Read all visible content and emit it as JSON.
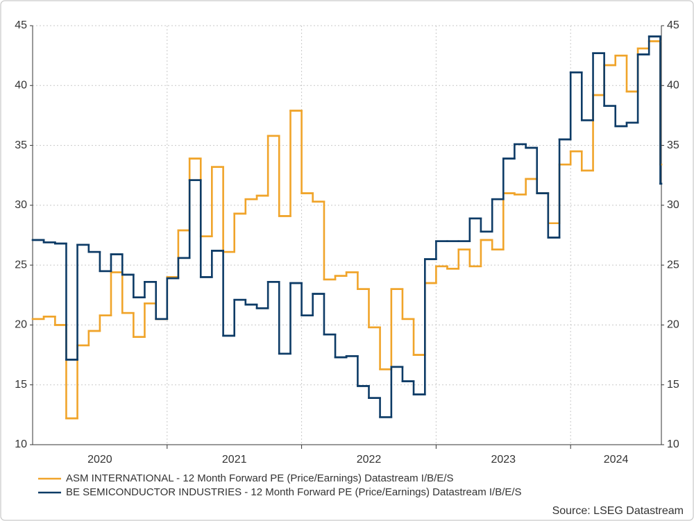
{
  "chart_data": {
    "type": "line",
    "x": [
      2020,
      2020.083,
      2020.167,
      2020.25,
      2020.333,
      2020.417,
      2020.5,
      2020.583,
      2020.667,
      2020.75,
      2020.833,
      2020.917,
      2021,
      2021.083,
      2021.167,
      2021.25,
      2021.333,
      2021.417,
      2021.5,
      2021.583,
      2021.667,
      2021.75,
      2021.833,
      2021.917,
      2022,
      2022.083,
      2022.167,
      2022.25,
      2022.333,
      2022.417,
      2022.5,
      2022.583,
      2022.667,
      2022.75,
      2022.833,
      2022.917,
      2023,
      2023.083,
      2023.167,
      2023.25,
      2023.333,
      2023.417,
      2023.5,
      2023.583,
      2023.667,
      2023.75,
      2023.833,
      2023.917,
      2024,
      2024.083,
      2024.167,
      2024.25,
      2024.333,
      2024.417,
      2024.5,
      2024.583,
      2024.667
    ],
    "series": [
      {
        "name": "ASM INTERNATIONAL - 12 Month Forward PE (Price/Earnings) Datastream I/B/E/S",
        "color": "#f0a42a",
        "values": [
          20.5,
          20.7,
          20.0,
          12.2,
          18.3,
          19.5,
          20.8,
          24.4,
          21.0,
          19.0,
          21.8,
          20.5,
          24.0,
          27.9,
          33.9,
          27.4,
          33.2,
          26.1,
          29.3,
          30.5,
          30.8,
          35.8,
          29.1,
          37.9,
          31.0,
          30.3,
          23.8,
          24.1,
          24.4,
          23.0,
          19.8,
          16.3,
          23.0,
          20.5,
          17.5,
          23.5,
          24.9,
          24.7,
          26.3,
          24.9,
          27.1,
          26.3,
          31.0,
          30.9,
          32.2,
          31.0,
          28.5,
          33.4,
          34.5,
          32.9,
          39.2,
          41.7,
          42.5,
          39.5,
          43.1,
          43.7,
          33.4
        ]
      },
      {
        "name": "BE SEMICONDUCTOR INDUSTRIES - 12 Month Forward PE (Price/Earnings) Datastream I/B/E/S",
        "color": "#0d3b66",
        "values": [
          27.1,
          26.9,
          26.8,
          17.1,
          26.7,
          26.1,
          24.5,
          25.9,
          24.2,
          22.3,
          23.6,
          20.5,
          23.9,
          25.6,
          32.1,
          24.0,
          26.2,
          19.1,
          22.1,
          21.7,
          21.4,
          23.6,
          17.6,
          23.5,
          20.8,
          22.6,
          19.2,
          17.3,
          17.4,
          14.9,
          13.9,
          12.3,
          16.5,
          15.3,
          14.2,
          25.5,
          27.0,
          27.0,
          27.0,
          28.9,
          27.8,
          30.5,
          33.9,
          35.1,
          34.8,
          31.0,
          27.3,
          35.5,
          41.1,
          37.1,
          42.7,
          38.3,
          36.6,
          36.9,
          42.6,
          44.1,
          31.8
        ]
      }
    ],
    "xlim": [
      2020,
      2024.675
    ],
    "xticks": [
      {
        "value": 2020,
        "label": "2020"
      },
      {
        "value": 2021,
        "label": "2021"
      },
      {
        "value": 2022,
        "label": "2022"
      },
      {
        "value": 2023,
        "label": "2023"
      },
      {
        "value": 2024,
        "label": "2024"
      }
    ],
    "ylim": [
      10,
      45
    ],
    "yticks": [
      10,
      15,
      20,
      25,
      30,
      35,
      40,
      45
    ],
    "y2lim": [
      10,
      45
    ],
    "y2ticks": [
      10,
      15,
      20,
      25,
      30,
      35,
      40,
      45
    ],
    "grid": true,
    "step": true,
    "source": "Source: LSEG Datastream"
  }
}
